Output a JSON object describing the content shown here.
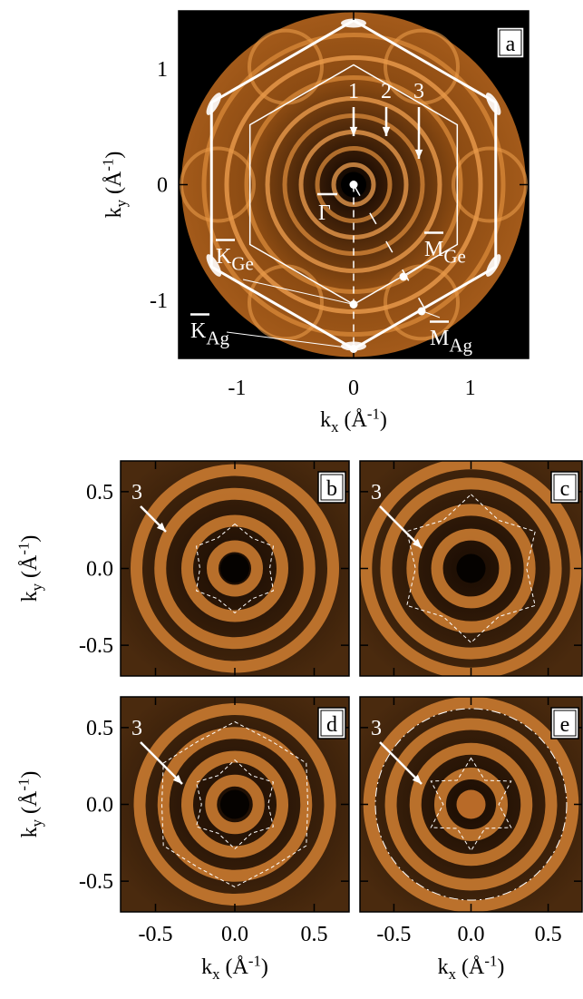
{
  "panel_a": {
    "label": "a",
    "xlim": [
      -1.5,
      1.5
    ],
    "ylim": [
      -1.5,
      1.5
    ],
    "xticks": [
      -1,
      0,
      1
    ],
    "yticks": [
      -1,
      0,
      1
    ],
    "xlabel": [
      "k",
      "x",
      " (Å",
      "-1",
      ")"
    ],
    "ylabel": [
      "k",
      "y",
      " (Å",
      "-1",
      ")"
    ],
    "ring_labels": [
      "1",
      "2",
      "3"
    ],
    "gamma": "Γ",
    "k_ge": [
      "K",
      "Ge"
    ],
    "m_ge": [
      "M",
      "Ge"
    ],
    "k_ag": [
      "K",
      "Ag"
    ],
    "m_ag": [
      "M",
      "Ag"
    ]
  },
  "small_panels": {
    "labels": [
      "b",
      "c",
      "d",
      "e"
    ],
    "xlim": [
      -0.72,
      0.72
    ],
    "ylim": [
      -0.7,
      0.7
    ],
    "ticks": [
      -0.5,
      {
        "value": 0,
        "label": "0.0"
      },
      0.5
    ],
    "ring_label": "3",
    "xlabel": [
      "k",
      "x",
      " (Å",
      "-1",
      ")"
    ],
    "ylabel": [
      "k",
      "y",
      " (Å",
      "-1",
      ")"
    ]
  }
}
